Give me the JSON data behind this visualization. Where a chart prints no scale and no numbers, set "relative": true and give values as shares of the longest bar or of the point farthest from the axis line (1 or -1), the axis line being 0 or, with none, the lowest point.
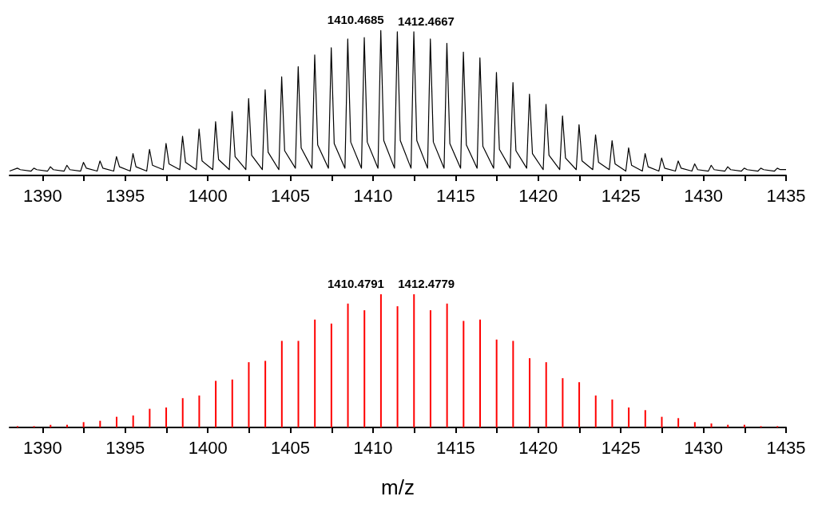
{
  "chart_data": [
    {
      "type": "line",
      "relative": true,
      "xlim": [
        1388,
        1435
      ],
      "xticks": [
        {
          "value": 1390,
          "label": "1390"
        },
        {
          "value": 1392.5,
          "label": null
        },
        {
          "value": 1395,
          "label": "1395"
        },
        {
          "value": 1397.5,
          "label": null
        },
        {
          "value": 1400,
          "label": "1400"
        },
        {
          "value": 1402.5,
          "label": null
        },
        {
          "value": 1405,
          "label": "1405"
        },
        {
          "value": 1407.5,
          "label": null
        },
        {
          "value": 1410,
          "label": "1410"
        },
        {
          "value": 1412.5,
          "label": null
        },
        {
          "value": 1415,
          "label": "1415"
        },
        {
          "value": 1417.5,
          "label": null
        },
        {
          "value": 1420,
          "label": "1420"
        },
        {
          "value": 1422.5,
          "label": null
        },
        {
          "value": 1425,
          "label": "1425"
        },
        {
          "value": 1427.5,
          "label": null
        },
        {
          "value": 1430,
          "label": "1430"
        },
        {
          "value": 1432.5,
          "label": null
        },
        {
          "value": 1435,
          "label": "1435"
        }
      ],
      "marker": "none",
      "line_style": "solid",
      "annotations": [
        {
          "text": "1410.4685",
          "x": 1410.47,
          "y": 1
        },
        {
          "text": "1412.4667",
          "x": 1412.47,
          "y": 0.99
        }
      ],
      "series": [
        {
          "color": "#000000",
          "x": [
            1388,
            1388.47,
            1388.65,
            1389.3,
            1389.47,
            1389.65,
            1390.3,
            1390.47,
            1390.65,
            1391.3,
            1391.47,
            1391.65,
            1392.3,
            1392.47,
            1392.65,
            1393.3,
            1393.47,
            1393.65,
            1394.3,
            1394.47,
            1394.65,
            1395.3,
            1395.47,
            1395.65,
            1396.3,
            1396.47,
            1396.65,
            1397.3,
            1397.47,
            1397.65,
            1398.3,
            1398.47,
            1398.65,
            1399.3,
            1399.47,
            1399.65,
            1400.3,
            1400.47,
            1400.65,
            1401.3,
            1401.47,
            1401.65,
            1402.3,
            1402.47,
            1402.65,
            1403.3,
            1403.47,
            1403.65,
            1404.3,
            1404.47,
            1404.65,
            1405.3,
            1405.47,
            1405.65,
            1406.3,
            1406.47,
            1406.65,
            1407.3,
            1407.47,
            1407.65,
            1408.3,
            1408.47,
            1408.65,
            1409.3,
            1409.47,
            1409.65,
            1410.3,
            1410.47,
            1410.65,
            1411.3,
            1411.47,
            1411.65,
            1412.3,
            1412.47,
            1412.65,
            1413.3,
            1413.47,
            1413.65,
            1414.3,
            1414.47,
            1414.65,
            1415.3,
            1415.47,
            1415.65,
            1416.3,
            1416.47,
            1416.65,
            1417.3,
            1417.47,
            1417.65,
            1418.3,
            1418.47,
            1418.65,
            1419.3,
            1419.47,
            1419.65,
            1420.3,
            1420.47,
            1420.65,
            1421.3,
            1421.47,
            1421.65,
            1422.3,
            1422.47,
            1422.65,
            1423.3,
            1423.47,
            1423.65,
            1424.3,
            1424.47,
            1424.65,
            1425.3,
            1425.47,
            1425.65,
            1426.3,
            1426.47,
            1426.65,
            1427.3,
            1427.47,
            1427.65,
            1428.3,
            1428.47,
            1428.65,
            1429.3,
            1429.47,
            1429.65,
            1430.3,
            1430.47,
            1430.65,
            1431.3,
            1431.47,
            1431.65,
            1432.3,
            1432.47,
            1432.65,
            1433.3,
            1433.47,
            1433.65,
            1434.3,
            1434.47,
            1434.65,
            1435
          ],
          "values": [
            0.03,
            0.05,
            0.04,
            0.03,
            0.05,
            0.04,
            0.03,
            0.06,
            0.04,
            0.03,
            0.07,
            0.04,
            0.03,
            0.09,
            0.05,
            0.03,
            0.1,
            0.05,
            0.03,
            0.13,
            0.06,
            0.03,
            0.15,
            0.06,
            0.03,
            0.18,
            0.07,
            0.04,
            0.22,
            0.08,
            0.04,
            0.27,
            0.09,
            0.04,
            0.32,
            0.1,
            0.04,
            0.37,
            0.11,
            0.04,
            0.44,
            0.13,
            0.04,
            0.53,
            0.14,
            0.04,
            0.59,
            0.16,
            0.04,
            0.68,
            0.17,
            0.05,
            0.75,
            0.19,
            0.05,
            0.83,
            0.21,
            0.05,
            0.88,
            0.22,
            0.05,
            0.94,
            0.23,
            0.05,
            0.95,
            0.23,
            0.05,
            1,
            0.24,
            0.05,
            0.99,
            0.24,
            0.05,
            0.99,
            0.24,
            0.05,
            0.94,
            0.23,
            0.05,
            0.91,
            0.22,
            0.05,
            0.85,
            0.21,
            0.05,
            0.81,
            0.2,
            0.05,
            0.71,
            0.18,
            0.05,
            0.64,
            0.17,
            0.05,
            0.56,
            0.15,
            0.04,
            0.49,
            0.14,
            0.04,
            0.41,
            0.12,
            0.04,
            0.35,
            0.1,
            0.04,
            0.28,
            0.09,
            0.04,
            0.24,
            0.08,
            0.03,
            0.19,
            0.07,
            0.03,
            0.15,
            0.06,
            0.03,
            0.12,
            0.05,
            0.03,
            0.1,
            0.05,
            0.03,
            0.08,
            0.04,
            0.03,
            0.07,
            0.04,
            0.03,
            0.06,
            0.04,
            0.03,
            0.05,
            0.04,
            0.03,
            0.05,
            0.04,
            0.03,
            0.05,
            0.04,
            0.04
          ]
        }
      ]
    },
    {
      "type": "bar",
      "relative": true,
      "xlabel": "m/z",
      "xlim": [
        1388,
        1435
      ],
      "xticks": [
        {
          "value": 1390,
          "label": "1390"
        },
        {
          "value": 1392.5,
          "label": null
        },
        {
          "value": 1395,
          "label": "1395"
        },
        {
          "value": 1397.5,
          "label": null
        },
        {
          "value": 1400,
          "label": "1400"
        },
        {
          "value": 1402.5,
          "label": null
        },
        {
          "value": 1405,
          "label": "1405"
        },
        {
          "value": 1407.5,
          "label": null
        },
        {
          "value": 1410,
          "label": "1410"
        },
        {
          "value": 1412.5,
          "label": null
        },
        {
          "value": 1415,
          "label": "1415"
        },
        {
          "value": 1417.5,
          "label": null
        },
        {
          "value": 1420,
          "label": "1420"
        },
        {
          "value": 1422.5,
          "label": null
        },
        {
          "value": 1425,
          "label": "1425"
        },
        {
          "value": 1427.5,
          "label": null
        },
        {
          "value": 1430,
          "label": "1430"
        },
        {
          "value": 1432.5,
          "label": null
        },
        {
          "value": 1435,
          "label": "1435"
        }
      ],
      "annotations": [
        {
          "text": "1410.4791",
          "x": 1410.48,
          "y": 1
        },
        {
          "text": "1412.4779",
          "x": 1412.48,
          "y": 1
        }
      ],
      "series": [
        {
          "color": "#ff0000",
          "x": [
            1388.48,
            1389.48,
            1390.48,
            1391.48,
            1392.48,
            1393.48,
            1394.48,
            1395.48,
            1396.48,
            1397.48,
            1398.48,
            1399.48,
            1400.48,
            1401.48,
            1402.48,
            1403.48,
            1404.48,
            1405.48,
            1406.48,
            1407.48,
            1408.48,
            1409.48,
            1410.48,
            1411.48,
            1412.48,
            1413.48,
            1414.48,
            1415.48,
            1416.48,
            1417.48,
            1418.48,
            1419.48,
            1420.48,
            1421.48,
            1422.48,
            1423.48,
            1424.48,
            1425.48,
            1426.48,
            1427.48,
            1428.48,
            1429.48,
            1430.48,
            1431.48,
            1432.48,
            1433.48,
            1434.48
          ],
          "values": [
            0.01,
            0.01,
            0.02,
            0.02,
            0.04,
            0.05,
            0.08,
            0.09,
            0.14,
            0.15,
            0.22,
            0.24,
            0.35,
            0.36,
            0.49,
            0.5,
            0.65,
            0.65,
            0.81,
            0.78,
            0.93,
            0.88,
            1,
            0.91,
            1,
            0.88,
            0.93,
            0.8,
            0.81,
            0.66,
            0.65,
            0.52,
            0.49,
            0.37,
            0.34,
            0.24,
            0.21,
            0.15,
            0.13,
            0.08,
            0.07,
            0.04,
            0.03,
            0.02,
            0.02,
            0.01,
            0.01
          ]
        }
      ]
    }
  ]
}
